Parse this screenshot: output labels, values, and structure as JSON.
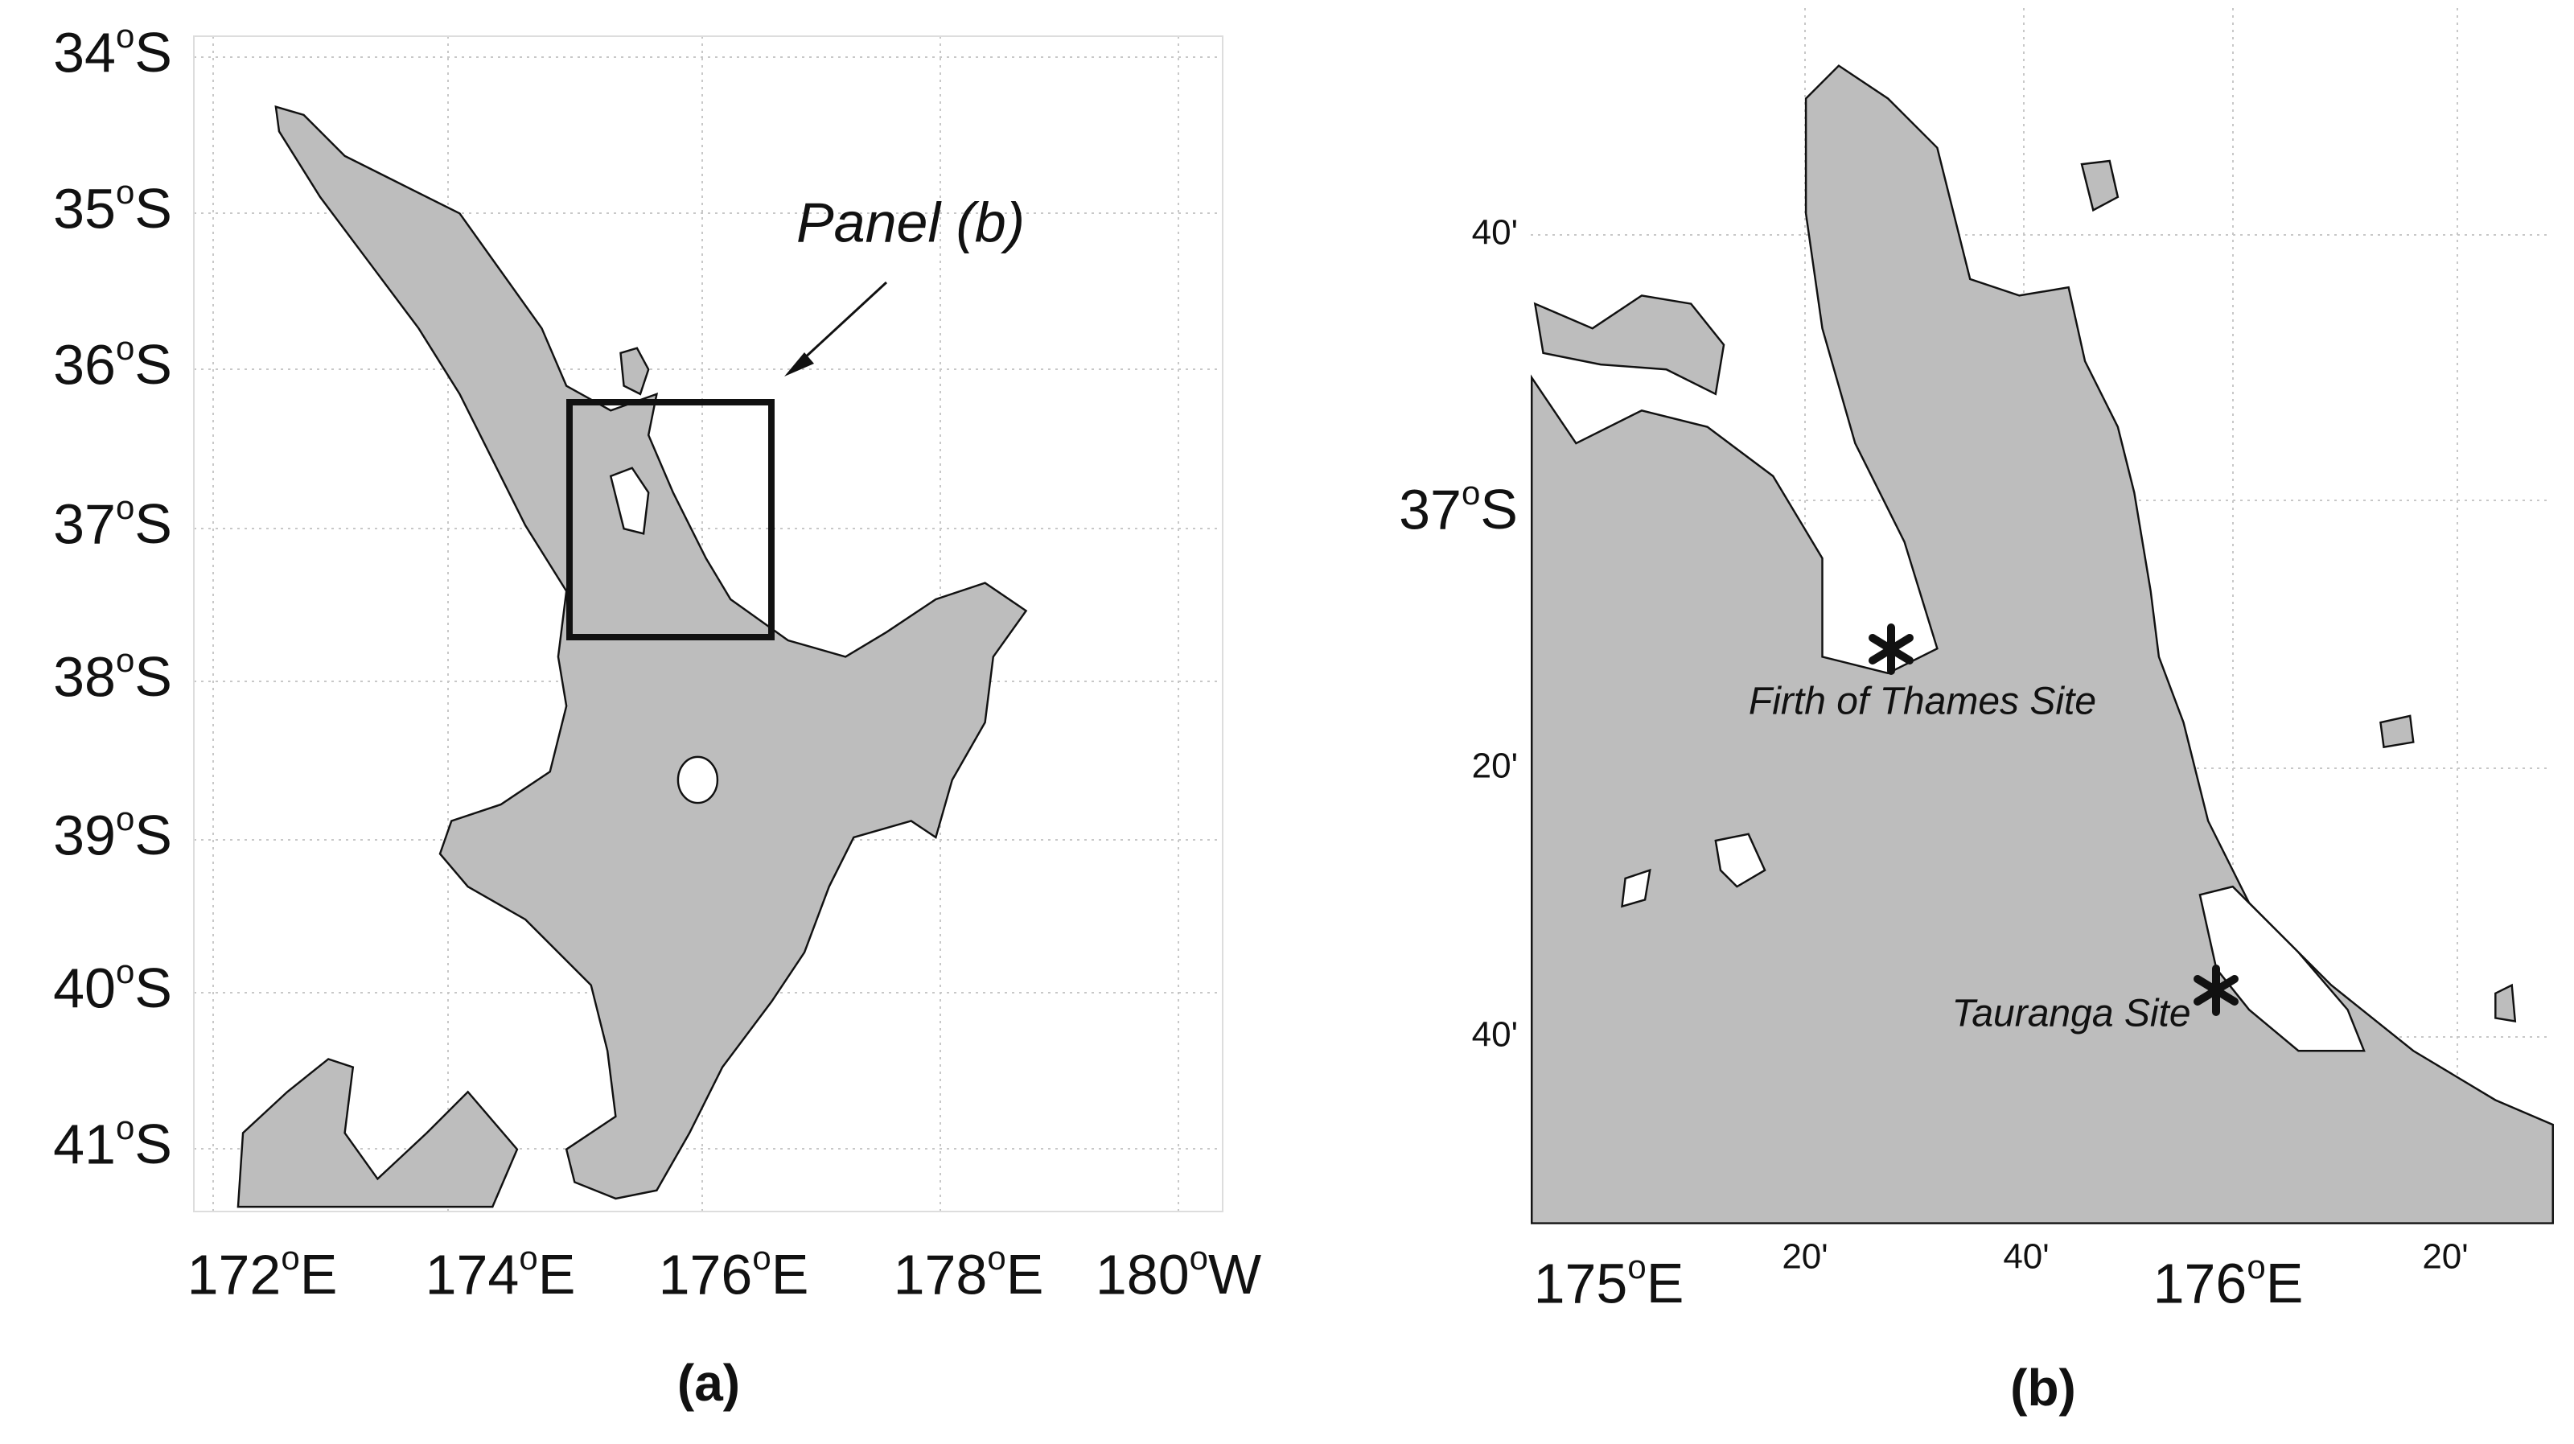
{
  "panel_a": {
    "caption": "(a)",
    "annotation": "Panel (b)",
    "lat_labels": [
      "34oS",
      "35oS",
      "36oS",
      "37oS",
      "38oS",
      "39oS",
      "40oS",
      "41oS"
    ],
    "lon_labels": [
      "172oE",
      "174oE",
      "176oE",
      "178oE",
      "180oW"
    ]
  },
  "panel_b": {
    "caption": "(b)",
    "lat_labels": [
      "40'",
      "37oS",
      "20'",
      "40'"
    ],
    "lon_labels": [
      "175oE",
      "20'",
      "40'",
      "176oE",
      "20'"
    ],
    "sites": [
      "Firth of Thames Site",
      "Tauranga Site"
    ]
  }
}
